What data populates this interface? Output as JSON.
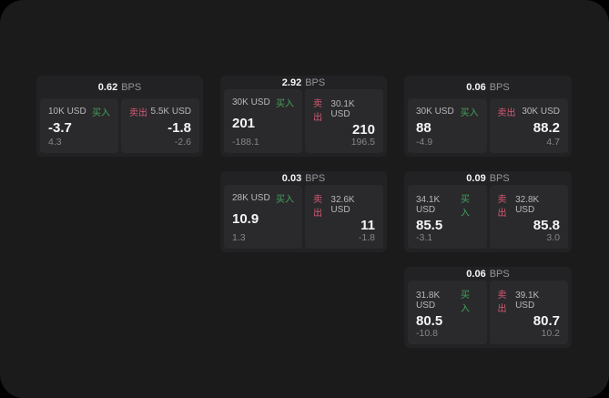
{
  "labels": {
    "unit": "BPS",
    "buy": "买入",
    "sell": "卖出"
  },
  "colors": {
    "outer_background": "#000000",
    "window_background": "#1b1b1c",
    "card_background": "#222224",
    "panel_background": "#2a2a2c",
    "buy_green": "#45a15c",
    "sell_red": "#d45a73",
    "primary_text": "#f5f5f6",
    "secondary_text": "#b8b8bb",
    "muted_text": "#86868a"
  },
  "cards": [
    {
      "bps": "0.62",
      "buy": {
        "amount": "10K USD",
        "price": "-3.7",
        "delta": "4.3"
      },
      "sell": {
        "amount": "5.5K USD",
        "price": "-1.8",
        "delta": "-2.6"
      }
    },
    {
      "bps": "2.92",
      "buy": {
        "amount": "30K USD",
        "price": "201",
        "delta": "-188.1"
      },
      "sell": {
        "amount": "30.1K USD",
        "price": "210",
        "delta": "196.5"
      }
    },
    {
      "bps": "0.06",
      "buy": {
        "amount": "30K USD",
        "price": "88",
        "delta": "-4.9"
      },
      "sell": {
        "amount": "30K USD",
        "price": "88.2",
        "delta": "4.7"
      }
    },
    {
      "bps": "0.03",
      "buy": {
        "amount": "28K USD",
        "price": "10.9",
        "delta": "1.3"
      },
      "sell": {
        "amount": "32.6K USD",
        "price": "11",
        "delta": "-1.8"
      }
    },
    {
      "bps": "0.09",
      "buy": {
        "amount": "34.1K USD",
        "price": "85.5",
        "delta": "-3.1"
      },
      "sell": {
        "amount": "32.8K USD",
        "price": "85.8",
        "delta": "3.0"
      }
    },
    {
      "bps": "0.06",
      "buy": {
        "amount": "31.8K USD",
        "price": "80.5",
        "delta": "-10.8"
      },
      "sell": {
        "amount": "39.1K USD",
        "price": "80.7",
        "delta": "10.2"
      }
    }
  ]
}
